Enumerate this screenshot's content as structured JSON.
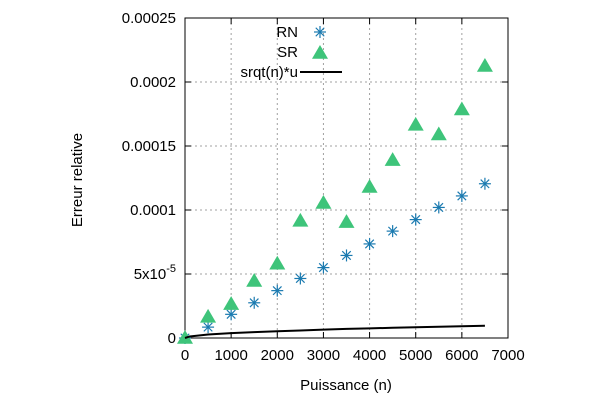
{
  "chart_data": {
    "type": "scatter",
    "xlabel": "Puissance (n)",
    "ylabel": "Erreur relative",
    "xlim": [
      0,
      7000
    ],
    "ylim": [
      0,
      0.00025
    ],
    "x_ticks": [
      {
        "value": 0,
        "label": "0"
      },
      {
        "value": 1000,
        "label": "1000"
      },
      {
        "value": 2000,
        "label": "2000"
      },
      {
        "value": 3000,
        "label": "3000"
      },
      {
        "value": 4000,
        "label": "4000"
      },
      {
        "value": 5000,
        "label": "5000"
      },
      {
        "value": 6000,
        "label": "6000"
      },
      {
        "value": 7000,
        "label": "7000"
      }
    ],
    "y_ticks": [
      {
        "value": 0,
        "label": "0",
        "base": "0",
        "exp": ""
      },
      {
        "value": 5e-05,
        "label": "5x10-5",
        "base": "5x10",
        "exp": "-5"
      },
      {
        "value": 0.0001,
        "label": "0.0001",
        "base": "0.0001",
        "exp": ""
      },
      {
        "value": 0.00015,
        "label": "0.00015",
        "base": "0.00015",
        "exp": ""
      },
      {
        "value": 0.0002,
        "label": "0.0002",
        "base": "0.0002",
        "exp": ""
      },
      {
        "value": 0.00025,
        "label": "0.00025",
        "base": "0.00025",
        "exp": ""
      }
    ],
    "grid": true,
    "legend_position": "top-left",
    "series": [
      {
        "name": "RN",
        "marker": "asterisk",
        "color": "#1a7ab0",
        "points": [
          {
            "x": 0,
            "y": 0.0
          },
          {
            "x": 500,
            "y": 8.5e-06
          },
          {
            "x": 1000,
            "y": 1.85e-05
          },
          {
            "x": 1500,
            "y": 2.75e-05
          },
          {
            "x": 2000,
            "y": 3.7e-05
          },
          {
            "x": 2500,
            "y": 4.65e-05
          },
          {
            "x": 3000,
            "y": 5.5e-05
          },
          {
            "x": 3500,
            "y": 6.45e-05
          },
          {
            "x": 4000,
            "y": 7.35e-05
          },
          {
            "x": 4500,
            "y": 8.35e-05
          },
          {
            "x": 5000,
            "y": 9.25e-05
          },
          {
            "x": 5500,
            "y": 0.000102
          },
          {
            "x": 6000,
            "y": 0.000111
          },
          {
            "x": 6500,
            "y": 0.0001205
          }
        ]
      },
      {
        "name": "SR",
        "marker": "triangle",
        "color": "#3ec47a",
        "points": [
          {
            "x": 0,
            "y": 0.0
          },
          {
            "x": 500,
            "y": 1.65e-05
          },
          {
            "x": 1000,
            "y": 2.65e-05
          },
          {
            "x": 1500,
            "y": 4.45e-05
          },
          {
            "x": 2000,
            "y": 5.8e-05
          },
          {
            "x": 2500,
            "y": 9.15e-05
          },
          {
            "x": 3000,
            "y": 0.0001055
          },
          {
            "x": 3500,
            "y": 9.05e-05
          },
          {
            "x": 4000,
            "y": 0.000118
          },
          {
            "x": 4500,
            "y": 0.000139
          },
          {
            "x": 5000,
            "y": 0.0001665
          },
          {
            "x": 5500,
            "y": 0.000159
          },
          {
            "x": 6000,
            "y": 0.0001785
          },
          {
            "x": 6500,
            "y": 0.0002125
          }
        ]
      },
      {
        "name": "sqrt(n)*u",
        "marker": "line",
        "color": "#000000",
        "points": [
          {
            "x": 0,
            "y": 0.0
          },
          {
            "x": 100,
            "y": 1.2e-06
          },
          {
            "x": 500,
            "y": 2.7e-06
          },
          {
            "x": 1000,
            "y": 3.8e-06
          },
          {
            "x": 1500,
            "y": 4.6e-06
          },
          {
            "x": 2000,
            "y": 5.3e-06
          },
          {
            "x": 2500,
            "y": 5.9e-06
          },
          {
            "x": 3000,
            "y": 6.5e-06
          },
          {
            "x": 3500,
            "y": 7.1e-06
          },
          {
            "x": 4000,
            "y": 7.5e-06
          },
          {
            "x": 4500,
            "y": 8e-06
          },
          {
            "x": 5000,
            "y": 8.4e-06
          },
          {
            "x": 5500,
            "y": 8.8e-06
          },
          {
            "x": 6000,
            "y": 9.2e-06
          },
          {
            "x": 6500,
            "y": 9.6e-06
          }
        ]
      }
    ],
    "legend": [
      {
        "label": "RN",
        "marker": "asterisk"
      },
      {
        "label": "SR",
        "marker": "triangle"
      },
      {
        "label": "srqt(n)*u",
        "marker": "line"
      }
    ]
  }
}
